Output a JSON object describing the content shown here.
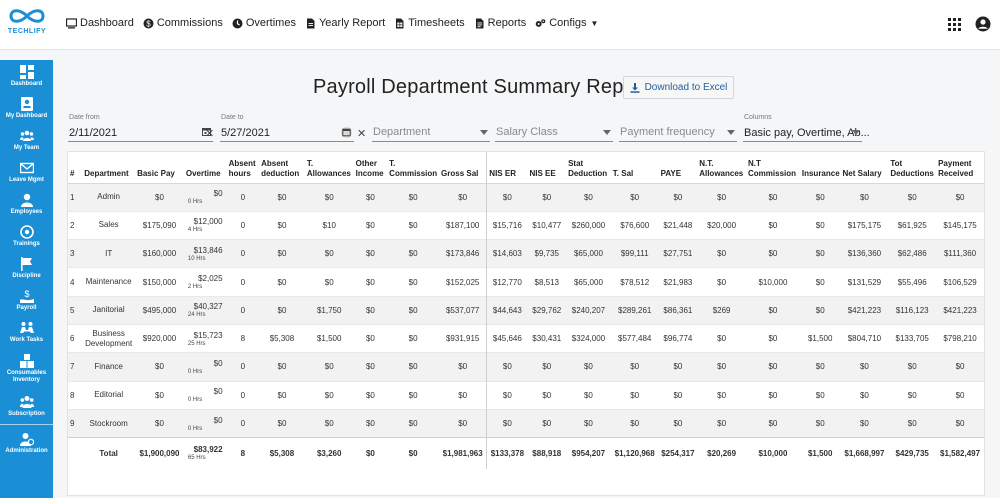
{
  "app": {
    "logo_text": "TECHLIFY"
  },
  "nav": [
    {
      "label": "Dashboard",
      "icon": "monitor-icon"
    },
    {
      "label": "Commissions",
      "icon": "dollar-circle-icon"
    },
    {
      "label": "Overtimes",
      "icon": "clock-icon"
    },
    {
      "label": "Yearly Report",
      "icon": "document-icon"
    },
    {
      "label": "Timesheets",
      "icon": "sheet-icon"
    },
    {
      "label": "Reports",
      "icon": "report-icon"
    },
    {
      "label": "Configs",
      "icon": "gears-icon"
    }
  ],
  "sidebar": [
    {
      "label": "Dashboard",
      "icon": "grid-icon"
    },
    {
      "label": "My Dashboard",
      "icon": "id-card-icon"
    },
    {
      "label": "My Team",
      "icon": "team-icon"
    },
    {
      "label": "Leave Mgmt",
      "icon": "envelope-icon"
    },
    {
      "label": "Employees",
      "icon": "user-icon"
    },
    {
      "label": "Trainings",
      "icon": "trainings-icon"
    },
    {
      "label": "Discipline",
      "icon": "flag-icon"
    },
    {
      "label": "Payroll",
      "icon": "payroll-icon"
    },
    {
      "label": "Work Tasks",
      "icon": "people-tasks-icon"
    },
    {
      "label": "Consumables Inventory",
      "label_line1": "Consumables",
      "label_line2": "Inventory",
      "icon": "boxes-icon"
    },
    {
      "label": "Subscription",
      "icon": "group-icon"
    },
    {
      "label": "Administration",
      "icon": "admin-icon"
    }
  ],
  "page": {
    "title": "Payroll Department Summary Report",
    "download_label": "Download to Excel"
  },
  "filters": {
    "date_from_label": "Date from",
    "date_from_value": "2/11/2021",
    "date_to_label": "Date to",
    "date_to_value": "5/27/2021",
    "department_placeholder": "Department",
    "salary_class_placeholder": "Salary Class",
    "payment_frequency_placeholder": "Payment frequency",
    "columns_label": "Columns",
    "columns_value": "Basic pay, Overtime, Ab..."
  },
  "table": {
    "headers": [
      "#",
      "Department",
      "Basic Pay",
      "Overtime",
      "Absent hours",
      "Absent deduction",
      "T. Allowances",
      "Other Income",
      "T. Commission",
      "Gross Sal",
      "NIS ER",
      "NIS EE",
      "Stat Deduction",
      "T. Sal",
      "PAYE",
      "N.T. Allowances",
      "N.T Commission",
      "Insurance",
      "Net Salary",
      "Tot Deductions",
      "Payment Received"
    ],
    "rows": [
      {
        "n": "1",
        "dept": "Admin",
        "basic": "$0",
        "ot": "$0",
        "ot_hrs": "0 Hrs",
        "abs_h": "0",
        "abs_d": "$0",
        "t_all": "$0",
        "other": "$0",
        "t_com": "$0",
        "gross": "$0",
        "nis_er": "$0",
        "nis_ee": "$0",
        "stat": "$0",
        "t_sal": "$0",
        "paye": "$0",
        "nt_all": "$0",
        "nt_com": "$0",
        "ins": "$0",
        "net": "$0",
        "tot_ded": "$0",
        "paid": "$0"
      },
      {
        "n": "2",
        "dept": "Sales",
        "basic": "$175,090",
        "ot": "$12,000",
        "ot_hrs": "4 Hrs",
        "abs_h": "0",
        "abs_d": "$0",
        "t_all": "$10",
        "other": "$0",
        "t_com": "$0",
        "gross": "$187,100",
        "nis_er": "$15,716",
        "nis_ee": "$10,477",
        "stat": "$260,000",
        "t_sal": "$76,600",
        "paye": "$21,448",
        "nt_all": "$20,000",
        "nt_com": "$0",
        "ins": "$0",
        "net": "$175,175",
        "tot_ded": "$61,925",
        "paid": "$145,175"
      },
      {
        "n": "3",
        "dept": "IT",
        "basic": "$160,000",
        "ot": "$13,846",
        "ot_hrs": "10 Hrs",
        "abs_h": "0",
        "abs_d": "$0",
        "t_all": "$0",
        "other": "$0",
        "t_com": "$0",
        "gross": "$173,846",
        "nis_er": "$14,603",
        "nis_ee": "$9,735",
        "stat": "$65,000",
        "t_sal": "$99,111",
        "paye": "$27,751",
        "nt_all": "$0",
        "nt_com": "$0",
        "ins": "$0",
        "net": "$136,360",
        "tot_ded": "$62,486",
        "paid": "$111,360"
      },
      {
        "n": "4",
        "dept": "Maintenance",
        "basic": "$150,000",
        "ot": "$2,025",
        "ot_hrs": "2 Hrs",
        "abs_h": "0",
        "abs_d": "$0",
        "t_all": "$0",
        "other": "$0",
        "t_com": "$0",
        "gross": "$152,025",
        "nis_er": "$12,770",
        "nis_ee": "$8,513",
        "stat": "$65,000",
        "t_sal": "$78,512",
        "paye": "$21,983",
        "nt_all": "$0",
        "nt_com": "$10,000",
        "ins": "$0",
        "net": "$131,529",
        "tot_ded": "$55,496",
        "paid": "$106,529"
      },
      {
        "n": "5",
        "dept": "Janitorial",
        "basic": "$495,000",
        "ot": "$40,327",
        "ot_hrs": "24 Hrs",
        "abs_h": "0",
        "abs_d": "$0",
        "t_all": "$1,750",
        "other": "$0",
        "t_com": "$0",
        "gross": "$537,077",
        "nis_er": "$44,643",
        "nis_ee": "$29,762",
        "stat": "$240,207",
        "t_sal": "$289,261",
        "paye": "$86,361",
        "nt_all": "$269",
        "nt_com": "$0",
        "ins": "$0",
        "net": "$421,223",
        "tot_ded": "$116,123",
        "paid": "$421,223"
      },
      {
        "n": "6",
        "dept": "Business Development",
        "dept_l1": "Business",
        "dept_l2": "Development",
        "basic": "$920,000",
        "ot": "$15,723",
        "ot_hrs": "25 Hrs",
        "abs_h": "8",
        "abs_d": "$5,308",
        "t_all": "$1,500",
        "other": "$0",
        "t_com": "$0",
        "gross": "$931,915",
        "nis_er": "$45,646",
        "nis_ee": "$30,431",
        "stat": "$324,000",
        "t_sal": "$577,484",
        "paye": "$96,774",
        "nt_all": "$0",
        "nt_com": "$0",
        "ins": "$1,500",
        "net": "$804,710",
        "tot_ded": "$133,705",
        "paid": "$798,210"
      },
      {
        "n": "7",
        "dept": "Finance",
        "basic": "$0",
        "ot": "$0",
        "ot_hrs": "0 Hrs",
        "abs_h": "0",
        "abs_d": "$0",
        "t_all": "$0",
        "other": "$0",
        "t_com": "$0",
        "gross": "$0",
        "nis_er": "$0",
        "nis_ee": "$0",
        "stat": "$0",
        "t_sal": "$0",
        "paye": "$0",
        "nt_all": "$0",
        "nt_com": "$0",
        "ins": "$0",
        "net": "$0",
        "tot_ded": "$0",
        "paid": "$0"
      },
      {
        "n": "8",
        "dept": "Editorial",
        "basic": "$0",
        "ot": "$0",
        "ot_hrs": "0 Hrs",
        "abs_h": "0",
        "abs_d": "$0",
        "t_all": "$0",
        "other": "$0",
        "t_com": "$0",
        "gross": "$0",
        "nis_er": "$0",
        "nis_ee": "$0",
        "stat": "$0",
        "t_sal": "$0",
        "paye": "$0",
        "nt_all": "$0",
        "nt_com": "$0",
        "ins": "$0",
        "net": "$0",
        "tot_ded": "$0",
        "paid": "$0"
      },
      {
        "n": "9",
        "dept": "Stockroom",
        "basic": "$0",
        "ot": "$0",
        "ot_hrs": "0 Hrs",
        "abs_h": "0",
        "abs_d": "$0",
        "t_all": "$0",
        "other": "$0",
        "t_com": "$0",
        "gross": "$0",
        "nis_er": "$0",
        "nis_ee": "$0",
        "stat": "$0",
        "t_sal": "$0",
        "paye": "$0",
        "nt_all": "$0",
        "nt_com": "$0",
        "ins": "$0",
        "net": "$0",
        "tot_ded": "$0",
        "paid": "$0"
      }
    ],
    "total": {
      "label": "Total",
      "basic": "$1,900,090",
      "ot": "$83,922",
      "ot_hrs": "65 Hrs",
      "abs_h": "8",
      "abs_d": "$5,308",
      "t_all": "$3,260",
      "other": "$0",
      "t_com": "$0",
      "gross": "$1,981,963",
      "nis_er": "$133,378",
      "nis_ee": "$88,918",
      "stat": "$954,207",
      "t_sal": "$1,120,968",
      "paye": "$254,317",
      "nt_all": "$20,269",
      "nt_com": "$10,000",
      "ins": "$1,500",
      "net": "$1,668,997",
      "tot_ded": "$429,735",
      "paid": "$1,582,497"
    }
  },
  "colors": {
    "brand": "#1a8fd6",
    "header_bg": "#ffffff",
    "stripe": "#f2f2f2"
  }
}
